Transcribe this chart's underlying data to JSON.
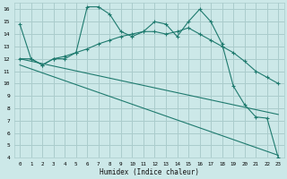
{
  "xlabel": "Humidex (Indice chaleur)",
  "background_color": "#cce8e8",
  "grid_color": "#aacccc",
  "line_color": "#1e7a6e",
  "xlim": [
    -0.5,
    23.5
  ],
  "ylim": [
    4,
    16.5
  ],
  "xticks": [
    0,
    1,
    2,
    3,
    4,
    5,
    6,
    7,
    8,
    9,
    10,
    11,
    12,
    13,
    14,
    15,
    16,
    17,
    18,
    19,
    20,
    21,
    22,
    23
  ],
  "yticks": [
    4,
    5,
    6,
    7,
    8,
    9,
    10,
    11,
    12,
    13,
    14,
    15,
    16
  ],
  "series": [
    {
      "x": [
        0,
        1,
        2,
        3,
        4,
        5,
        6,
        7,
        8,
        9,
        10,
        11,
        12,
        13,
        14,
        15,
        16,
        17,
        18,
        19,
        20,
        21,
        22,
        23
      ],
      "y": [
        14.8,
        12.0,
        11.5,
        12.0,
        12.0,
        12.5,
        16.2,
        16.2,
        15.6,
        14.2,
        13.8,
        14.2,
        15.0,
        14.8,
        13.8,
        15.0,
        16.0,
        15.0,
        13.2,
        9.8,
        8.3,
        7.3,
        7.2,
        4.0
      ],
      "has_markers": true
    },
    {
      "x": [
        0,
        1,
        2,
        3,
        4,
        5,
        6,
        7,
        8,
        9,
        10,
        11,
        12,
        13,
        14,
        15,
        16,
        17,
        18,
        19,
        20,
        21,
        22,
        23
      ],
      "y": [
        12.0,
        12.0,
        11.5,
        12.0,
        12.2,
        12.5,
        12.8,
        13.2,
        13.5,
        13.8,
        14.0,
        14.2,
        14.2,
        14.0,
        14.2,
        14.5,
        14.0,
        13.5,
        13.0,
        12.5,
        11.8,
        11.0,
        10.5,
        10.0
      ],
      "has_markers": true
    },
    {
      "x": [
        0,
        23
      ],
      "y": [
        12.0,
        7.5
      ],
      "has_markers": false
    },
    {
      "x": [
        0,
        23
      ],
      "y": [
        11.5,
        4.2
      ],
      "has_markers": false
    }
  ]
}
